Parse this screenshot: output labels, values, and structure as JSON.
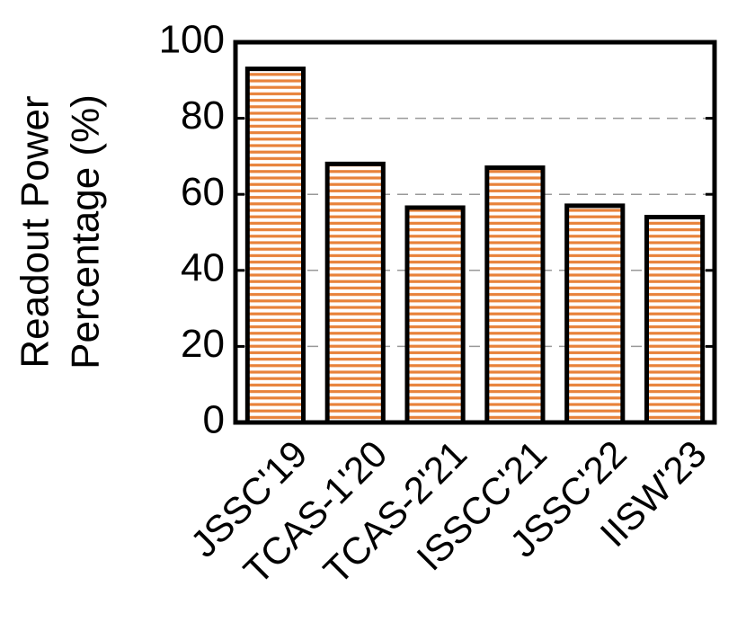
{
  "chart_data": {
    "type": "bar",
    "y_label": [
      "Readout Power",
      "Percentage (%)"
    ],
    "categories": [
      "JSSC'19",
      "TCAS-1'20",
      "TCAS-2'21",
      "ISSCC'21",
      "JSSC'22",
      "IISW'23"
    ],
    "values": [
      93,
      68,
      56.5,
      67,
      57,
      54
    ],
    "color": "#e8823a",
    "ylim": [
      0,
      100
    ],
    "yticks": [
      0,
      20,
      40,
      60,
      80,
      100
    ],
    "grid": true
  }
}
